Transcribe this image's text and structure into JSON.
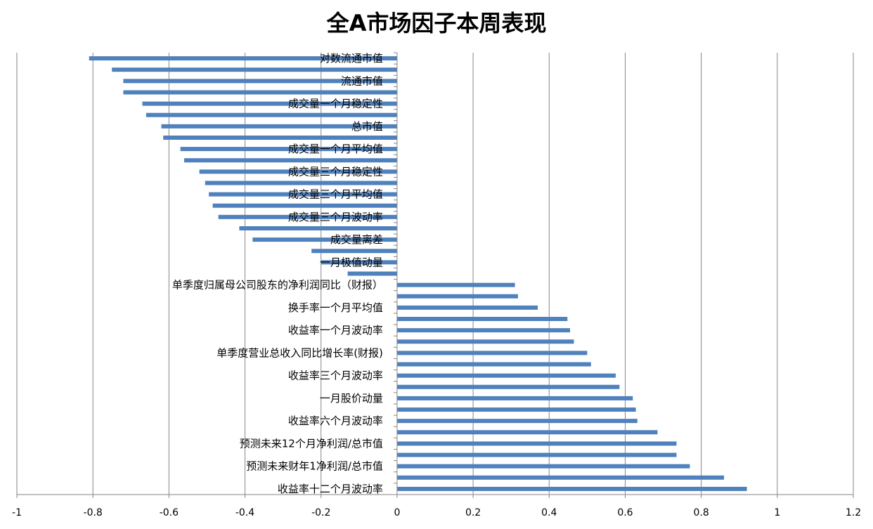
{
  "chart_data": {
    "type": "bar",
    "orientation": "horizontal",
    "title": "全A市场因子本周表现",
    "xlabel": "",
    "ylabel": "",
    "xlim": [
      -1,
      1.2
    ],
    "x_ticks": [
      -1,
      -0.8,
      -0.6,
      -0.4,
      -0.2,
      0,
      0.2,
      0.4,
      0.6,
      0.8,
      1,
      1.2
    ],
    "x_tick_labels": [
      "-1",
      "-0.8",
      "-0.6",
      "-0.4",
      "-0.2",
      "0",
      "0.2",
      "0.4",
      "0.6",
      "0.8",
      "1",
      "1.2"
    ],
    "grid": "vertical",
    "legend": "none",
    "bar_color": "#4F81BD",
    "categories": [
      "对数流通市值",
      "",
      "流通市值",
      "",
      "成交量一个月稳定性",
      "",
      "总市值",
      "",
      "成交量一个月平均值",
      "",
      "成交量三个月稳定性",
      "",
      "成交量三个月平均值",
      "",
      "成交量三个月波动率",
      "",
      "成交量离差",
      "",
      "一月极值动量",
      "",
      "单季度归属母公司股东的净利润同比（财报）",
      "",
      "换手率一个月平均值",
      "",
      "收益率一个月波动率",
      "",
      "单季度营业总收入同比增长率(财报)",
      "",
      "收益率三个月波动率",
      "",
      "一月股价动量",
      "",
      "收益率六个月波动率",
      "",
      "预测未来12个月净利润/总市值",
      "",
      "预测未来财年1净利润/总市值",
      "",
      "收益率十二个月波动率"
    ],
    "values": [
      -0.81,
      -0.75,
      -0.72,
      -0.72,
      -0.67,
      -0.66,
      -0.62,
      -0.615,
      -0.57,
      -0.56,
      -0.52,
      -0.505,
      -0.495,
      -0.485,
      -0.47,
      -0.415,
      -0.38,
      -0.225,
      -0.2,
      -0.13,
      0.31,
      0.318,
      0.37,
      0.448,
      0.455,
      0.465,
      0.5,
      0.51,
      0.575,
      0.585,
      0.62,
      0.628,
      0.632,
      0.685,
      0.735,
      0.735,
      0.77,
      0.86,
      0.92
    ]
  }
}
